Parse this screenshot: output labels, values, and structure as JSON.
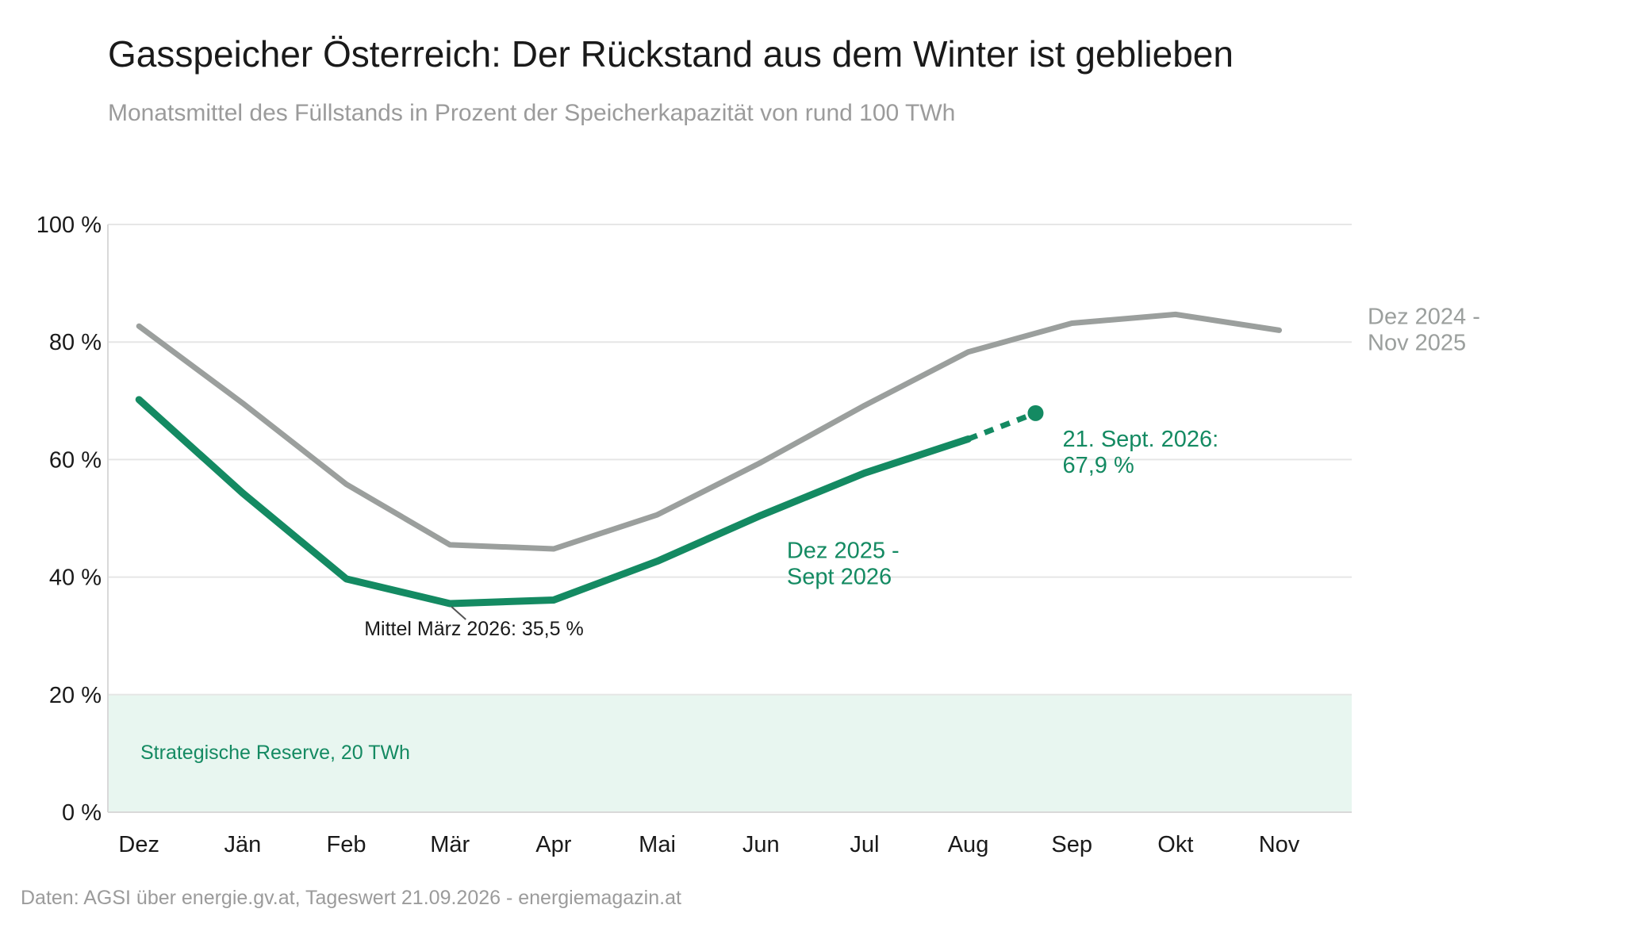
{
  "chart_data": {
    "type": "line",
    "title": "Gasspeicher Österreich: Der Rückstand aus dem Winter ist geblieben",
    "subtitle": "Monatsmittel des Füllstands in Prozent der Speicherkapazität von rund 100 TWh",
    "source": "Daten: AGSI über energie.gv.at, Tageswert 21.09.2026 - energiemagazin.at",
    "categories": [
      "Dez",
      "Jän",
      "Feb",
      "Mär",
      "Apr",
      "Mai",
      "Jun",
      "Jul",
      "Aug",
      "Sep",
      "Okt",
      "Nov"
    ],
    "ylim": [
      0,
      100
    ],
    "yticks": [
      0,
      20,
      40,
      60,
      80,
      100
    ],
    "ytick_labels": [
      "0 %",
      "20 %",
      "40 %",
      "60 %",
      "80 %",
      "100 %"
    ],
    "grid": true,
    "series": [
      {
        "name": "Dez 2024 - Nov 2025",
        "label_lines": [
          "Dez 2024 -",
          "Nov 2025"
        ],
        "color": "#9b9f9d",
        "values": [
          82.7,
          69.6,
          55.8,
          45.5,
          44.8,
          50.6,
          59.5,
          69.2,
          78.3,
          83.2,
          84.7,
          82.0
        ]
      },
      {
        "name": "Dez 2025 - Sept 2026",
        "label_lines": [
          "Dez 2025 -",
          "Sept 2026"
        ],
        "color": "#148a62",
        "values": [
          70.2,
          54.3,
          39.7,
          35.5,
          36.1,
          42.7,
          50.5,
          57.7,
          63.5,
          null,
          null,
          null
        ]
      }
    ],
    "daily_value": {
      "label_lines": [
        "21. Sept. 2026:",
        "67,9 %"
      ],
      "x": "Sep",
      "y": 67.9,
      "color": "#148a62"
    },
    "annotations": [
      {
        "text": "Mittel März 2026: 35,5 %",
        "x": "Mär",
        "y": 35.5
      }
    ],
    "reserve_band": {
      "label": "Strategische Reserve, 20 TWh",
      "from": 0,
      "to": 20,
      "fill": "#e8f6f0",
      "label_color": "#148a62"
    },
    "colors": {
      "title": "#1a1a1a",
      "subtitle": "#9b9b9b",
      "axis_text": "#1a1a1a",
      "grid": "#e6e6e6",
      "source": "#9b9b9b"
    }
  }
}
